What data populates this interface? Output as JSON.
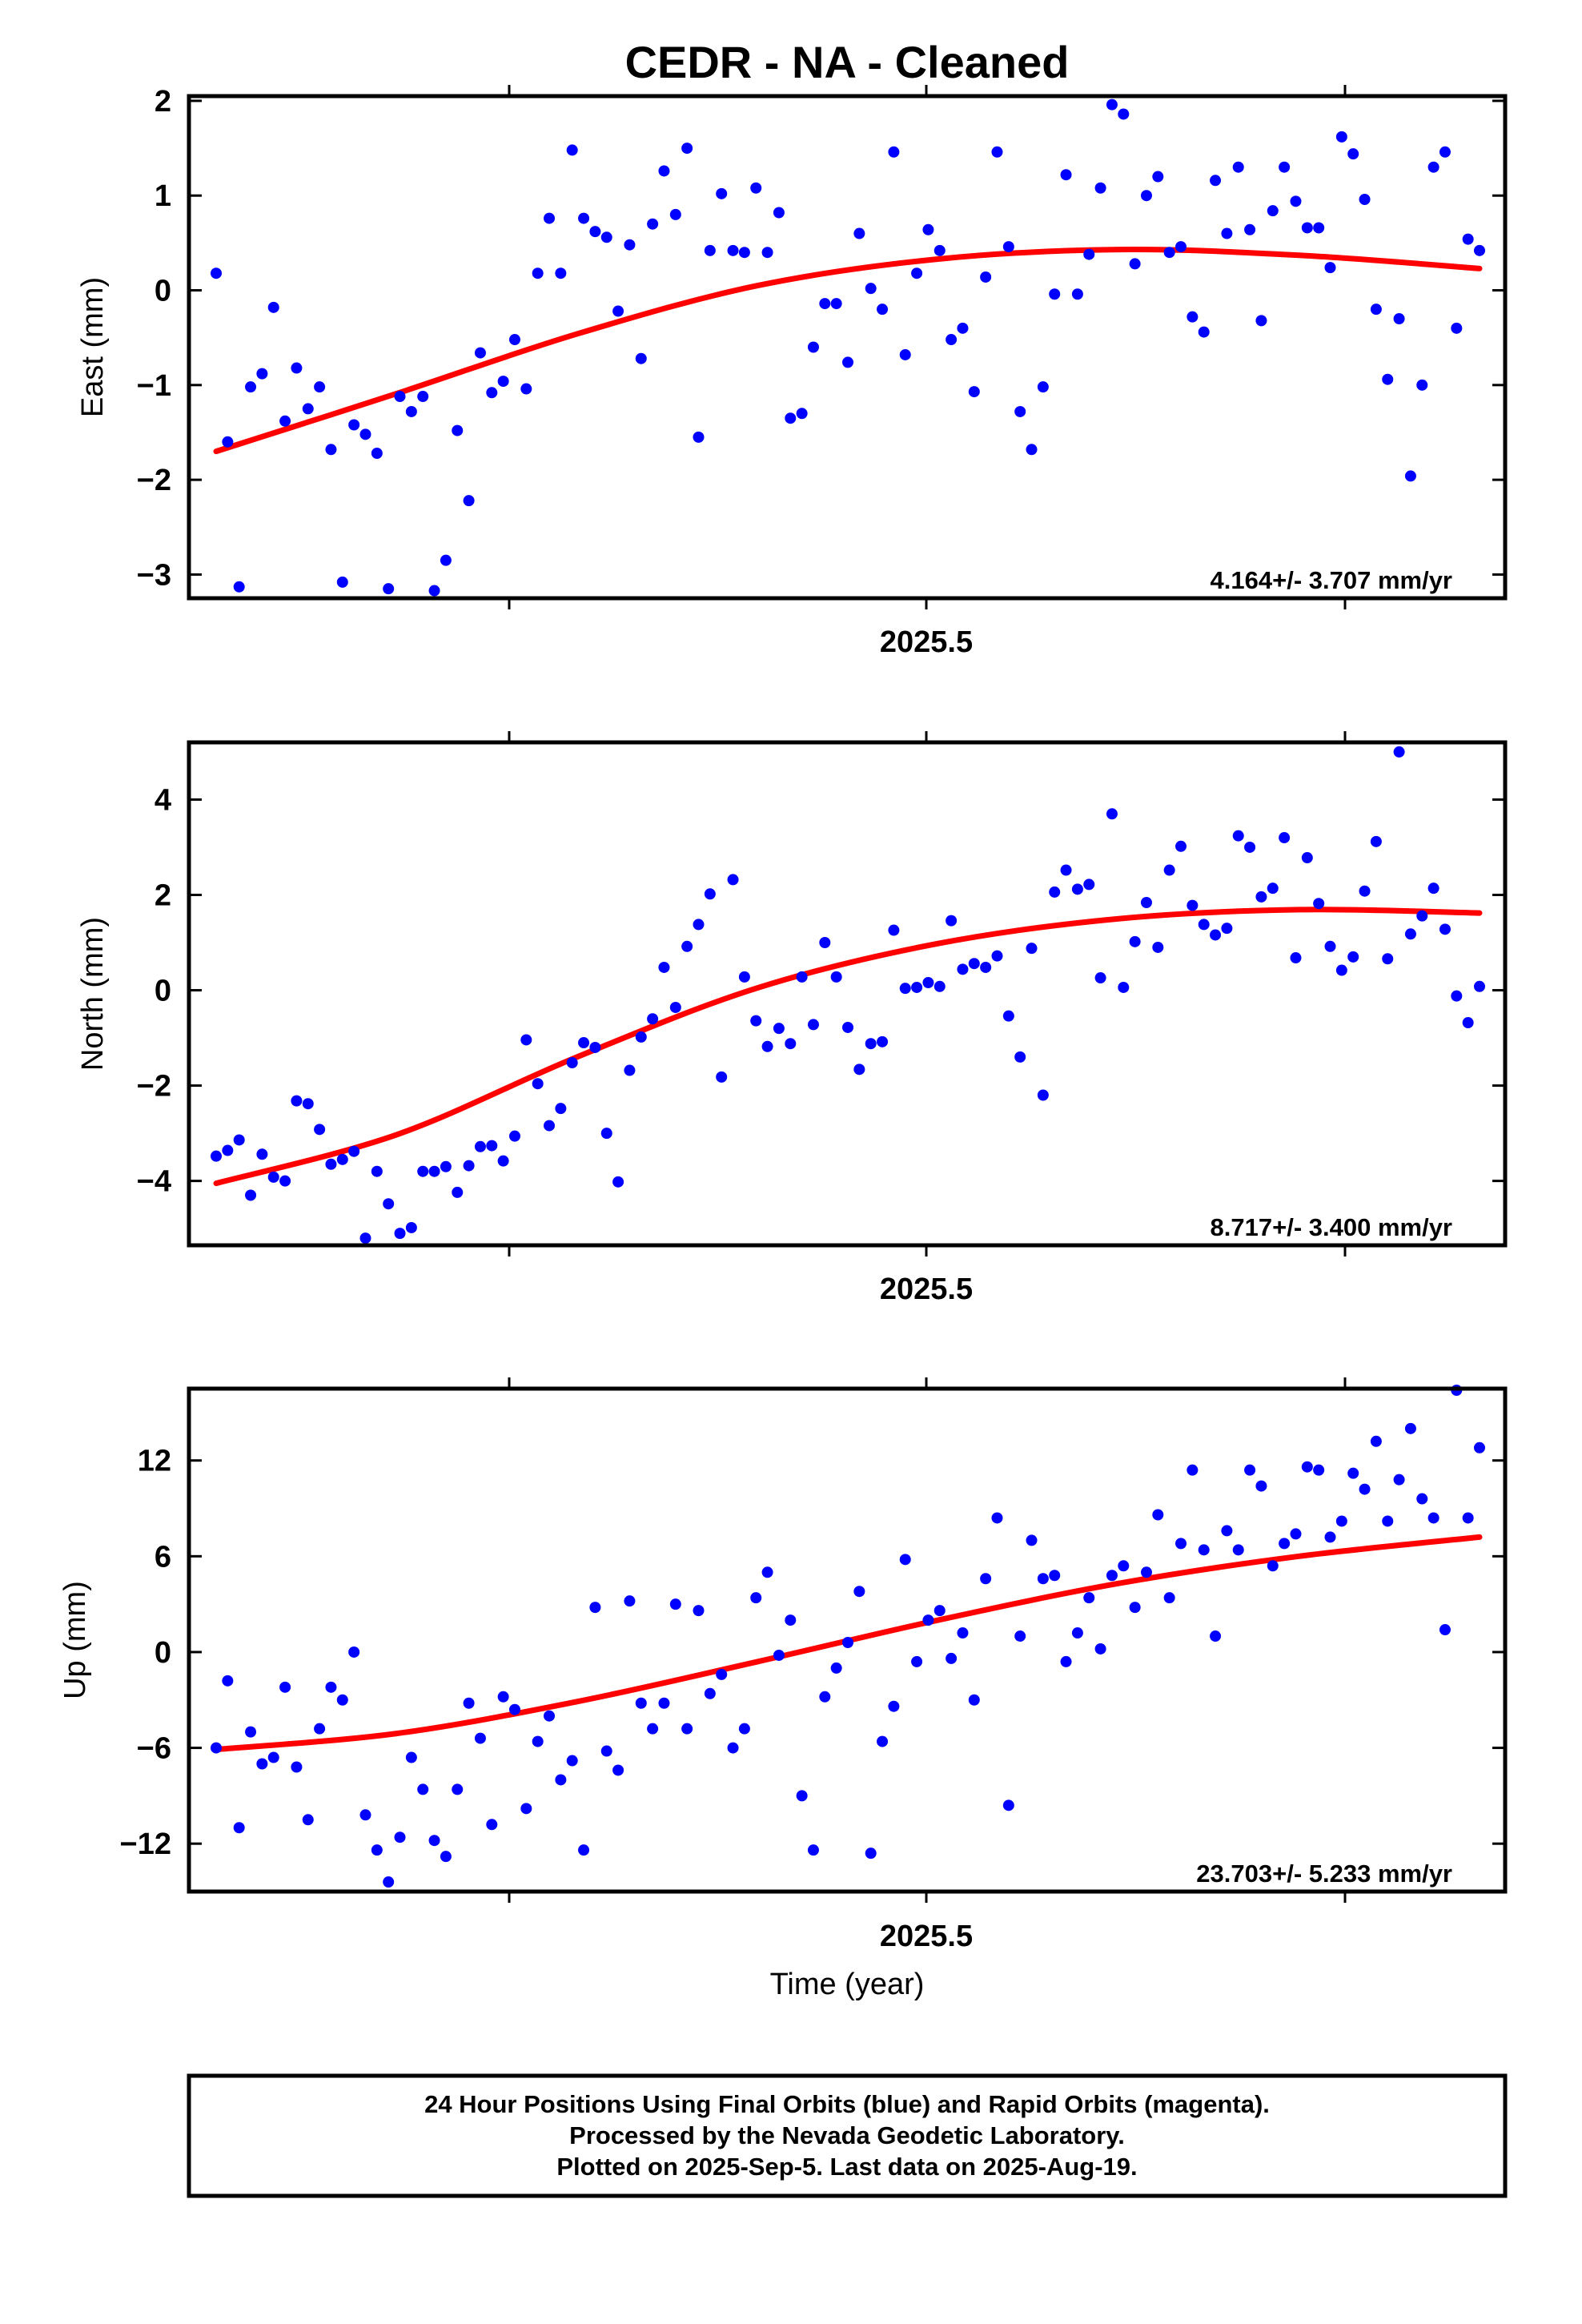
{
  "title": "CEDR  - NA - Cleaned",
  "x_axis_label": "Time (year)",
  "footer_lines": [
    "24 Hour Positions Using Final Orbits (blue) and Rapid Orbits (magenta).",
    "Processed by the Nevada Geodetic Laboratory.",
    "Plotted on 2025-Sep-5. Last data on 2025-Aug-19."
  ],
  "colors": {
    "points": "#0000ff",
    "fit": "#ff0000",
    "frame": "#000000"
  },
  "chart_data": [
    {
      "type": "scatter",
      "ylabel": "East (mm)",
      "xlim": [
        2025.27,
        2025.64
      ],
      "ylim": [
        -3.25,
        2.05
      ],
      "yticks": [
        2,
        1,
        0,
        -1,
        -2,
        -3
      ],
      "ytick_labels": [
        "2",
        "1",
        "0",
        "−1",
        "−2",
        "−3"
      ],
      "xtick_label": "2025.5",
      "rate_label": "4.164+/- 3.707 mm/yr",
      "series": [
        {
          "values": [
            0.18,
            -1.6,
            -3.13,
            -1.02,
            -0.88,
            -0.18,
            -1.38,
            -0.82,
            -1.25,
            -1.02,
            -1.68,
            -3.08,
            -1.42,
            -1.52,
            -1.72,
            -3.15,
            -1.12,
            -1.28,
            -1.12,
            -3.17,
            -2.85,
            -1.48,
            -2.22,
            -0.66,
            -1.08,
            -0.96,
            -0.52,
            -1.04,
            0.18,
            0.76,
            0.18,
            1.48,
            0.76,
            0.62,
            0.56,
            -0.22,
            0.48,
            -0.72,
            0.7,
            1.26,
            0.8,
            1.5,
            -1.55,
            0.42,
            1.02,
            0.42,
            0.4,
            1.08,
            0.4,
            0.82,
            -1.35,
            -1.3,
            -0.6,
            -0.14,
            -0.14,
            -0.76,
            0.6,
            0.02,
            -0.2,
            1.46,
            -0.68,
            0.18,
            0.64,
            0.42,
            -0.52,
            -0.4,
            -1.07,
            0.14,
            1.46,
            0.46,
            -1.28,
            -1.68,
            -1.02,
            -0.04,
            1.22,
            -0.04,
            0.38,
            1.08,
            1.96,
            1.86,
            0.28,
            1.0,
            1.2,
            0.4,
            0.46,
            -0.28,
            -0.44,
            1.16,
            0.6,
            1.3,
            0.64,
            -0.32,
            0.84,
            1.3,
            0.94,
            0.66,
            0.66,
            0.24,
            1.62,
            1.44,
            0.96,
            -0.2,
            -0.94,
            -0.3,
            -1.96,
            -1.0,
            1.3,
            1.46,
            -0.4,
            0.54,
            0.42
          ]
        }
      ],
      "fit": {
        "values": [
          -1.7,
          -1.09,
          -0.46,
          0.05,
          0.33,
          0.43,
          0.37,
          0.23
        ]
      }
    },
    {
      "type": "scatter",
      "ylabel": "North (mm)",
      "xlim": [
        2025.27,
        2025.64
      ],
      "ylim": [
        -5.35,
        5.2
      ],
      "yticks": [
        4,
        2,
        0,
        -2,
        -4
      ],
      "ytick_labels": [
        "4",
        "2",
        "0",
        "−2",
        "−4"
      ],
      "xtick_label": "2025.5",
      "rate_label": "8.717+/- 3.400 mm/yr",
      "series": [
        {
          "values": [
            -3.48,
            -3.36,
            -3.14,
            -4.3,
            -3.44,
            -3.92,
            -4.0,
            -2.32,
            -2.38,
            -2.92,
            -3.65,
            -3.55,
            -3.38,
            -5.2,
            -3.8,
            -4.48,
            -5.1,
            -4.98,
            -3.8,
            -3.8,
            -3.7,
            -4.24,
            -3.68,
            -3.28,
            -3.26,
            -3.58,
            -3.06,
            -1.04,
            -1.96,
            -2.84,
            -2.48,
            -1.52,
            -1.1,
            -1.2,
            -3.0,
            -4.02,
            -1.68,
            -0.98,
            -0.6,
            0.48,
            -0.36,
            0.92,
            1.38,
            2.02,
            -1.82,
            2.32,
            0.28,
            -0.64,
            -1.18,
            -0.8,
            -1.12,
            0.28,
            -0.72,
            1.0,
            0.28,
            -0.78,
            -1.66,
            -1.12,
            -1.08,
            1.26,
            0.04,
            0.06,
            0.16,
            0.08,
            1.46,
            0.44,
            0.56,
            0.48,
            0.72,
            -0.54,
            -1.4,
            0.88,
            -2.2,
            2.06,
            2.52,
            2.12,
            2.22,
            0.26,
            3.7,
            0.06,
            1.02,
            1.84,
            0.9,
            2.52,
            3.02,
            1.78,
            1.38,
            1.16,
            1.3,
            3.24,
            3.0,
            1.96,
            2.14,
            3.2,
            0.68,
            2.78,
            1.82,
            0.92,
            0.42,
            0.7,
            2.08,
            3.12,
            0.66,
            5.0,
            1.18,
            1.56,
            2.14,
            1.28,
            -0.12,
            -0.68,
            0.08
          ]
        }
      ],
      "fit": {
        "values": [
          -4.05,
          -3.03,
          -1.4,
          0.05,
          0.98,
          1.5,
          1.69,
          1.62
        ]
      }
    },
    {
      "type": "scatter",
      "ylabel": "Up (mm)",
      "xlim": [
        2025.27,
        2025.64
      ],
      "ylim": [
        -15,
        16.5
      ],
      "yticks": [
        12,
        6,
        0,
        -6,
        -12
      ],
      "ytick_labels": [
        "12",
        "6",
        "0",
        "−6",
        "−12"
      ],
      "xtick_label": "2025.5",
      "rate_label": "23.703+/- 5.233 mm/yr",
      "series": [
        {
          "values": [
            -6.0,
            -1.8,
            -11.0,
            -5.0,
            -7.0,
            -6.6,
            -2.2,
            -7.2,
            -10.5,
            -4.8,
            -2.2,
            -3.0,
            0.0,
            -10.2,
            -12.4,
            -14.4,
            -11.6,
            -6.6,
            -8.6,
            -11.8,
            -12.8,
            -8.6,
            -3.2,
            -5.4,
            -10.8,
            -2.8,
            -3.6,
            -9.8,
            -5.6,
            -4.0,
            -8.0,
            -6.8,
            -12.4,
            2.8,
            -6.2,
            -7.4,
            3.2,
            -3.2,
            -4.8,
            -3.2,
            3.0,
            -4.8,
            2.6,
            -2.6,
            -1.4,
            -6.0,
            -4.8,
            3.4,
            5.0,
            -0.2,
            2.0,
            -9.0,
            -12.4,
            -2.8,
            -1.0,
            0.6,
            3.8,
            -12.6,
            -5.6,
            -3.4,
            5.8,
            -0.6,
            2.0,
            2.6,
            -0.4,
            1.2,
            -3.0,
            4.6,
            8.4,
            -9.6,
            1.0,
            7.0,
            4.6,
            4.8,
            -0.6,
            1.2,
            3.4,
            0.2,
            4.8,
            5.4,
            2.8,
            5.0,
            8.6,
            3.4,
            6.8,
            11.4,
            6.4,
            1.0,
            7.6,
            6.4,
            11.4,
            10.4,
            5.4,
            6.8,
            7.4,
            11.6,
            11.4,
            7.2,
            8.2,
            11.2,
            10.2,
            13.2,
            8.2,
            10.8,
            14.0,
            9.6,
            8.4,
            1.4,
            16.4,
            8.4,
            12.8
          ]
        }
      ],
      "fit": {
        "values": [
          -6.1,
          -5.1,
          -3.1,
          -0.6,
          2.0,
          4.3,
          6.0,
          7.2
        ]
      }
    }
  ]
}
